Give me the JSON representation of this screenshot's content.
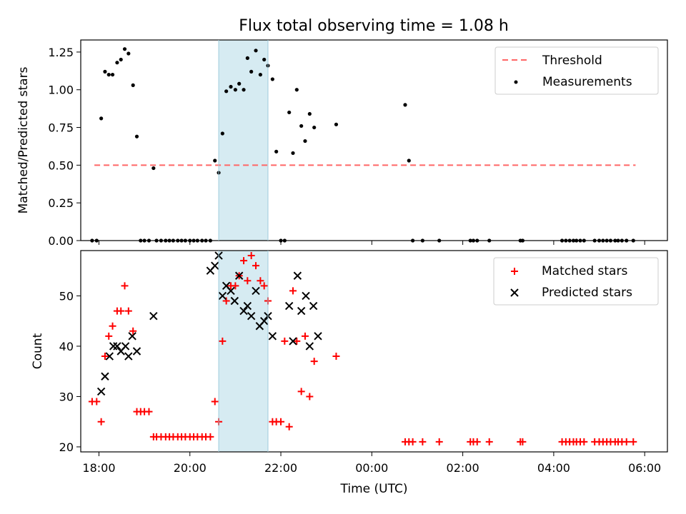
{
  "title": "Flux total observing time = 1.08 h",
  "xlabel": "Time (UTC)",
  "x_ticks": [
    "18:00",
    "20:00",
    "22:00",
    "00:00",
    "02:00",
    "04:00",
    "06:00"
  ],
  "colors": {
    "threshold": "#ff6666",
    "measurements": "#000000",
    "matched": "#ff0000",
    "predicted": "#000000",
    "highlight": "#add8e6"
  },
  "chart_data": [
    {
      "type": "scatter",
      "ylabel": "Matched/Predicted stars",
      "xlim": [
        "17:36",
        "06:30"
      ],
      "ylim": [
        0,
        1.33
      ],
      "y_ticks": [
        "0.00",
        "0.25",
        "0.50",
        "0.75",
        "1.00",
        "1.25"
      ],
      "legend_position": "top-right",
      "highlight_span": [
        "20:38",
        "21:43"
      ],
      "series": [
        {
          "name": "Threshold",
          "kind": "dashed-line",
          "x": [
            "17:54",
            "05:48"
          ],
          "y": [
            0.5,
            0.5
          ]
        },
        {
          "name": "Measurements",
          "kind": "dots",
          "x": [
            "17:51",
            "17:57",
            "18:03",
            "18:08",
            "18:13",
            "18:18",
            "18:24",
            "18:29",
            "18:34",
            "18:39",
            "18:45",
            "18:50",
            "18:55",
            "19:00",
            "19:06",
            "19:12",
            "19:16",
            "19:22",
            "19:28",
            "19:33",
            "19:38",
            "19:44",
            "19:49",
            "19:54",
            "20:00",
            "20:05",
            "20:10",
            "20:16",
            "20:21",
            "20:27",
            "20:33",
            "20:38",
            "20:43",
            "20:48",
            "20:54",
            "21:00",
            "21:05",
            "21:11",
            "21:16",
            "21:21",
            "21:27",
            "21:33",
            "21:38",
            "21:43",
            "21:49",
            "21:54",
            "22:00",
            "22:05",
            "22:11",
            "22:16",
            "22:21",
            "22:27",
            "22:32",
            "22:38",
            "22:44",
            "23:13",
            "00:44",
            "00:49",
            "00:54",
            "01:07",
            "01:29",
            "02:10",
            "02:14",
            "02:19",
            "02:35",
            "03:16",
            "03:19",
            "04:11",
            "04:16",
            "04:21",
            "04:26",
            "04:30",
            "04:35",
            "04:40",
            "04:54",
            "05:00",
            "05:05",
            "05:10",
            "05:15",
            "05:21",
            "05:25",
            "05:30",
            "05:36",
            "05:45"
          ],
          "y": [
            0,
            0,
            0.81,
            1.12,
            1.1,
            1.1,
            1.18,
            1.2,
            1.27,
            1.24,
            1.03,
            0.69,
            0,
            0,
            0,
            0.48,
            0,
            0,
            0,
            0,
            0,
            0,
            0,
            0,
            0,
            0,
            0,
            0,
            0,
            0,
            0.53,
            0.45,
            0.71,
            0.99,
            1.02,
            1.0,
            1.04,
            1.0,
            1.21,
            1.12,
            1.26,
            1.1,
            1.2,
            1.16,
            1.07,
            0.59,
            0,
            0,
            0.85,
            0.58,
            1.0,
            0.76,
            0.66,
            0.84,
            0.75,
            0.77,
            0.9,
            0.53,
            0,
            0,
            0,
            0,
            0,
            0,
            0,
            0,
            0,
            0,
            0,
            0,
            0,
            0,
            0,
            0,
            0,
            0,
            0,
            0,
            0,
            0,
            0,
            0,
            0,
            0
          ]
        }
      ]
    },
    {
      "type": "scatter",
      "ylabel": "Count",
      "xlim": [
        "17:36",
        "06:30"
      ],
      "ylim": [
        19,
        59
      ],
      "y_ticks": [
        "20",
        "30",
        "40",
        "50"
      ],
      "legend_position": "top-right",
      "highlight_span": [
        "20:38",
        "21:43"
      ],
      "series": [
        {
          "name": "Matched stars",
          "kind": "plus",
          "x": [
            "17:51",
            "17:57",
            "18:03",
            "18:08",
            "18:13",
            "18:18",
            "18:24",
            "18:29",
            "18:34",
            "18:39",
            "18:45",
            "18:50",
            "18:55",
            "19:00",
            "19:06",
            "19:12",
            "19:16",
            "19:22",
            "19:28",
            "19:33",
            "19:38",
            "19:44",
            "19:49",
            "19:54",
            "20:00",
            "20:05",
            "20:10",
            "20:16",
            "20:21",
            "20:27",
            "20:33",
            "20:38",
            "20:43",
            "20:48",
            "20:54",
            "21:00",
            "21:05",
            "21:11",
            "21:16",
            "21:21",
            "21:27",
            "21:33",
            "21:38",
            "21:43",
            "21:49",
            "21:54",
            "22:00",
            "22:05",
            "22:11",
            "22:16",
            "22:21",
            "22:27",
            "22:32",
            "22:38",
            "22:44",
            "23:13",
            "00:44",
            "00:49",
            "00:54",
            "01:07",
            "01:29",
            "02:10",
            "02:14",
            "02:19",
            "02:35",
            "03:16",
            "03:19",
            "04:11",
            "04:16",
            "04:21",
            "04:26",
            "04:30",
            "04:35",
            "04:40",
            "04:54",
            "05:00",
            "05:05",
            "05:10",
            "05:15",
            "05:21",
            "05:25",
            "05:30",
            "05:36",
            "05:45"
          ],
          "y": [
            29,
            29,
            25,
            38,
            42,
            44,
            47,
            47,
            52,
            47,
            43,
            27,
            27,
            27,
            27,
            22,
            22,
            22,
            22,
            22,
            22,
            22,
            22,
            22,
            22,
            22,
            22,
            22,
            22,
            22,
            29,
            25,
            41,
            49,
            52,
            52,
            54,
            57,
            53,
            58,
            56,
            53,
            52,
            49,
            25,
            25,
            25,
            41,
            24,
            51,
            41,
            31,
            42,
            30,
            37,
            38,
            21,
            21,
            21,
            21,
            21,
            21,
            21,
            21,
            21,
            21,
            21,
            21,
            21,
            21,
            21,
            21,
            21,
            21,
            21,
            21,
            21,
            21,
            21,
            21,
            21,
            21,
            21,
            21
          ]
        },
        {
          "name": "Predicted stars",
          "kind": "x",
          "x": [
            "18:03",
            "18:08",
            "18:14",
            "18:19",
            "18:24",
            "18:29",
            "18:35",
            "18:39",
            "18:44",
            "18:50",
            "19:12",
            "20:27",
            "20:33",
            "20:38",
            "20:43",
            "20:48",
            "20:54",
            "20:59",
            "21:05",
            "21:11",
            "21:16",
            "21:21",
            "21:27",
            "21:32",
            "21:38",
            "21:43",
            "21:49",
            "22:11",
            "22:16",
            "22:22",
            "22:27",
            "22:33",
            "22:38",
            "22:43",
            "22:49"
          ],
          "y": [
            31,
            34,
            38,
            40,
            40,
            39,
            40,
            38,
            42,
            39,
            46,
            55,
            56,
            58,
            50,
            52,
            51,
            49,
            54,
            47,
            48,
            46,
            51,
            44,
            45,
            46,
            42,
            48,
            41,
            54,
            47,
            50,
            40,
            48,
            42
          ]
        }
      ]
    }
  ]
}
